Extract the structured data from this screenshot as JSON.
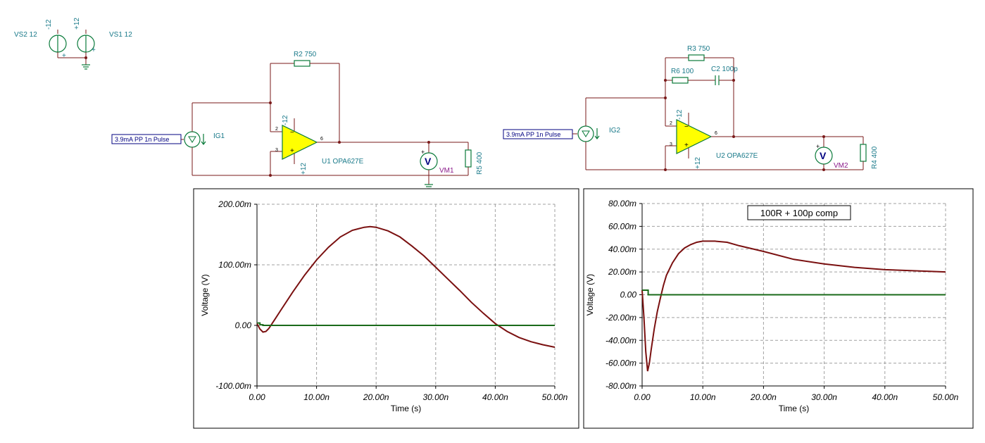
{
  "schematic": {
    "supplies": [
      {
        "name": "VS2 12",
        "rail": "-12"
      },
      {
        "name": "VS1 12",
        "rail": "+12"
      }
    ],
    "circuit1": {
      "source_box": "3.9mA PP 1n Pulse",
      "source_name": "IG1",
      "feedback_res": "R2 750",
      "opamp": "U1 OPA627E",
      "opamp_neg_rail": "-12",
      "opamp_pos_rail": "+12",
      "load_res": "R5 400",
      "meter": "VM1",
      "pins": {
        "p2": "2",
        "p3": "3",
        "p6": "6"
      }
    },
    "circuit2": {
      "source_box": "3.9mA PP 1n Pulse",
      "source_name": "IG2",
      "feedback_res": "R3 750",
      "comp_res": "R6 100",
      "comp_cap": "C2 100p",
      "opamp": "U2 OPA627E",
      "opamp_neg_rail": "-12",
      "opamp_pos_rail": "+12",
      "load_res": "R4 400",
      "meter": "VM2",
      "pins": {
        "p2": "2",
        "p3": "3",
        "p6": "6"
      }
    }
  },
  "chart_data": [
    {
      "type": "line",
      "title": "",
      "xlabel": "Time (s)",
      "ylabel": "Voltage (V)",
      "xlim": [
        0,
        50
      ],
      "ylim": [
        -100,
        200
      ],
      "x_ticks": [
        "0.00",
        "10.00n",
        "20.00n",
        "30.00n",
        "40.00n",
        "50.00n"
      ],
      "y_ticks": [
        "-100.00m",
        "0.00",
        "100.00m",
        "200.00m"
      ],
      "grid": true,
      "series": [
        {
          "color": "#7a1010",
          "x": [
            0,
            0.5,
            1,
            1.5,
            2,
            3,
            4,
            6,
            8,
            10,
            12,
            14,
            16,
            18,
            19,
            20,
            22,
            24,
            26,
            28,
            30,
            32,
            34,
            36,
            38,
            40,
            42,
            44,
            46,
            48,
            50
          ],
          "y": [
            3,
            -6,
            -11,
            -10,
            -5,
            10,
            25,
            55,
            83,
            108,
            129,
            146,
            157,
            162,
            163,
            162,
            156,
            146,
            131,
            115,
            96,
            77,
            58,
            38,
            20,
            3,
            -10,
            -20,
            -27,
            -32,
            -36
          ]
        },
        {
          "color": "#1a6a1a",
          "x": [
            0,
            0.5,
            0.5,
            1,
            1,
            50
          ],
          "y": [
            4,
            4,
            1,
            1,
            0,
            0
          ]
        }
      ]
    },
    {
      "type": "line",
      "title": "100R + 100p comp",
      "xlabel": "Time (s)",
      "ylabel": "Voltage (V)",
      "xlim": [
        0,
        50
      ],
      "ylim": [
        -80,
        80
      ],
      "x_ticks": [
        "0.00",
        "10.00n",
        "20.00n",
        "30.00n",
        "40.00n",
        "50.00n"
      ],
      "y_ticks": [
        "-80.00m",
        "-60.00m",
        "-40.00m",
        "-20.00m",
        "0.00",
        "20.00m",
        "40.00m",
        "60.00m",
        "80.00m"
      ],
      "grid": true,
      "series": [
        {
          "color": "#7a1010",
          "x": [
            0,
            0.3,
            0.6,
            0.9,
            1.2,
            1.5,
            2,
            2.5,
            3,
            3.5,
            4,
            5,
            6,
            7,
            8,
            9,
            10,
            12,
            14,
            16,
            20,
            25,
            30,
            35,
            40,
            45,
            50
          ],
          "y": [
            4,
            -20,
            -50,
            -67,
            -60,
            -48,
            -30,
            -15,
            -3,
            8,
            17,
            28,
            36,
            41,
            44,
            46,
            47,
            47,
            46,
            43,
            38,
            31,
            27,
            24,
            22,
            21,
            20
          ]
        },
        {
          "color": "#1a6a1a",
          "x": [
            0,
            1,
            1,
            50
          ],
          "y": [
            4,
            4,
            0,
            0
          ]
        }
      ]
    }
  ]
}
